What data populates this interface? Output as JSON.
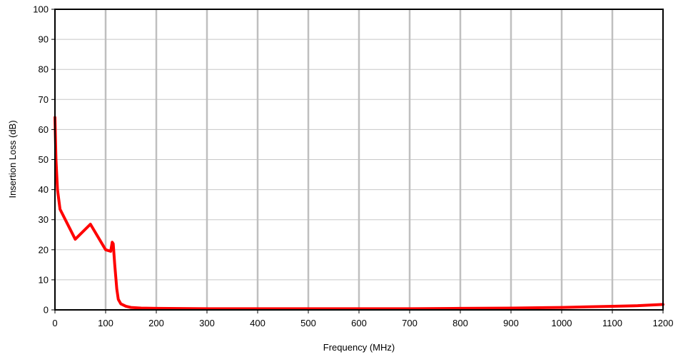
{
  "chart_data": {
    "type": "line",
    "title": "",
    "xlabel": "Frequency (MHz)",
    "ylabel": "Insertion Loss (dB)",
    "xlim": [
      0,
      1200
    ],
    "ylim": [
      0,
      100
    ],
    "x_ticks": [
      0,
      100,
      200,
      300,
      400,
      500,
      600,
      700,
      800,
      900,
      1000,
      1100,
      1200
    ],
    "y_ticks": [
      0,
      10,
      20,
      30,
      40,
      50,
      60,
      70,
      80,
      90,
      100
    ],
    "grid": {
      "x_major": true,
      "y_major": true
    },
    "legend": "none",
    "series": [
      {
        "color": "#ff0000",
        "x": [
          0,
          2,
          5,
          10,
          40,
          70,
          100,
          110,
          113,
          115,
          118,
          120,
          122,
          125,
          130,
          140,
          150,
          170,
          200,
          300,
          400,
          500,
          600,
          700,
          800,
          900,
          1000,
          1050,
          1100,
          1150,
          1200
        ],
        "y": [
          64,
          50,
          40,
          33.5,
          23.5,
          28.5,
          20,
          19.5,
          22.5,
          22,
          15,
          11,
          7,
          3.5,
          2,
          1.2,
          0.8,
          0.6,
          0.5,
          0.4,
          0.4,
          0.4,
          0.4,
          0.4,
          0.5,
          0.6,
          0.8,
          1.0,
          1.2,
          1.4,
          1.8
        ]
      }
    ]
  }
}
